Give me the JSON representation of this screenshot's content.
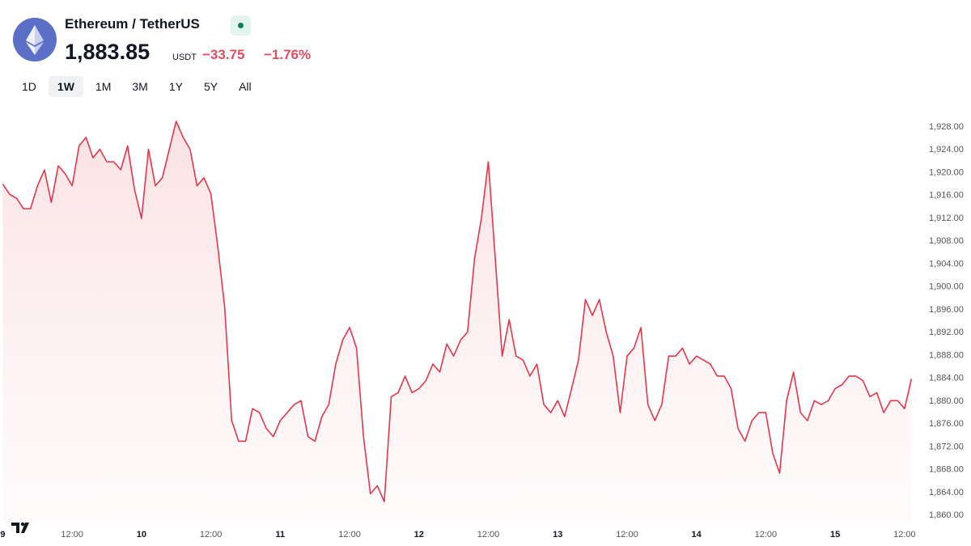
{
  "header": {
    "symbol": "Ethereum / TetherUS",
    "price": "1,883.85",
    "currency": "USDT",
    "change": "−33.75",
    "change_pct": "−1.76%",
    "ranges": [
      "1D",
      "1W",
      "1M",
      "3M",
      "1Y",
      "5Y",
      "All"
    ],
    "active_range": 1
  },
  "chart_data": {
    "type": "area",
    "color": "#e5364b",
    "x": [
      9,
      9.05,
      9.1,
      9.15,
      9.2,
      9.25,
      9.3,
      9.35,
      9.4,
      9.45,
      9.5,
      9.55,
      9.6,
      9.65,
      9.7,
      9.75,
      9.8,
      9.85,
      9.9,
      9.95,
      10,
      10.05,
      10.1,
      10.15,
      10.2,
      10.25,
      10.3,
      10.35,
      10.4,
      10.45,
      10.5,
      10.55,
      10.6,
      10.65,
      10.7,
      10.75,
      10.8,
      10.85,
      10.9,
      10.95,
      11,
      11.05,
      11.1,
      11.15,
      11.2,
      11.25,
      11.3,
      11.35,
      11.4,
      11.45,
      11.5,
      11.55,
      11.6,
      11.65,
      11.7,
      11.75,
      11.8,
      11.85,
      11.9,
      11.95,
      12,
      12.05,
      12.1,
      12.15,
      12.2,
      12.25,
      12.3,
      12.35,
      12.4,
      12.45,
      12.5,
      12.55,
      12.6,
      12.65,
      12.7,
      12.75,
      12.8,
      12.85,
      12.9,
      12.95,
      13,
      13.05,
      13.1,
      13.15,
      13.2,
      13.25,
      13.3,
      13.35,
      13.4,
      13.45,
      13.5,
      13.55,
      13.6,
      13.65,
      13.7,
      13.75,
      13.8,
      13.85,
      13.9,
      13.95,
      14,
      14.05,
      14.1,
      14.15,
      14.2,
      14.25,
      14.3,
      14.35,
      14.4,
      14.45,
      14.5,
      14.55,
      14.6,
      14.65,
      14.7,
      14.75,
      14.8,
      14.85,
      14.9,
      14.95,
      15,
      15.05,
      15.1,
      15.15,
      15.2,
      15.25,
      15.3,
      15.35,
      15.4,
      15.45,
      15.5,
      15.55
    ],
    "values": [
      1918,
      1916.2,
      1915.5,
      1913.7,
      1913.7,
      1917.7,
      1920.5,
      1914.8,
      1921.2,
      1919.8,
      1917.7,
      1924.7,
      1926.2,
      1922.6,
      1924.1,
      1921.9,
      1921.9,
      1920.5,
      1924.7,
      1917,
      1912,
      1924.1,
      1917.7,
      1919.1,
      1924.1,
      1929,
      1926.2,
      1924.1,
      1917.7,
      1919.1,
      1916.3,
      1907,
      1896.4,
      1876.6,
      1873,
      1873,
      1878.7,
      1878,
      1875.2,
      1873.8,
      1876.6,
      1878,
      1879.4,
      1880.1,
      1873.8,
      1873,
      1877.3,
      1879.4,
      1886.5,
      1890.7,
      1892.9,
      1889.3,
      1873.8,
      1863.8,
      1865.2,
      1862.4,
      1880.8,
      1881.5,
      1884.4,
      1881.5,
      1882.2,
      1883.6,
      1886.5,
      1885.1,
      1890,
      1887.9,
      1890.7,
      1892.1,
      1904.9,
      1912,
      1921.9,
      1904.9,
      1887.9,
      1894.3,
      1887.9,
      1887.2,
      1884.4,
      1886.5,
      1879.4,
      1878,
      1880.1,
      1877.3,
      1882.2,
      1887.2,
      1897.8,
      1895,
      1897.8,
      1892.1,
      1887.9,
      1878,
      1887.9,
      1889.3,
      1892.9,
      1879.4,
      1876.6,
      1879.4,
      1887.9,
      1887.9,
      1889.3,
      1886.5,
      1887.9,
      1887.2,
      1886.5,
      1884.4,
      1884.4,
      1882.2,
      1875.2,
      1873,
      1876.6,
      1878,
      1878,
      1870.9,
      1867.4,
      1880.1,
      1885.1,
      1878,
      1876.6,
      1880.1,
      1879.4,
      1880.1,
      1882.2,
      1882.9,
      1884.4,
      1884.4,
      1883.6,
      1880.8,
      1881.5,
      1878,
      1880.1,
      1880.1,
      1878.7,
      1883.9
    ],
    "xlim": [
      8.98,
      15.6
    ],
    "xticks": [
      9,
      {
        "value": 9.5,
        "label": "12:00"
      },
      10,
      {
        "value": 10.5,
        "label": "12:00"
      },
      11,
      {
        "value": 11.5,
        "label": "12:00"
      },
      12,
      {
        "value": 12.5,
        "label": "12:00"
      },
      13,
      {
        "value": 13.5,
        "label": "12:00"
      },
      14,
      {
        "value": 14.5,
        "label": "12:00"
      },
      15,
      {
        "value": 15.5,
        "label": "12:00"
      }
    ],
    "ylim": [
      1858.9,
      1930.4
    ],
    "yticks": [
      {
        "value": 1860,
        "label": "1,860.00"
      },
      {
        "value": 1864,
        "label": "1,864.00"
      },
      {
        "value": 1868,
        "label": "1,868.00"
      },
      {
        "value": 1872,
        "label": "1,872.00"
      },
      {
        "value": 1876,
        "label": "1,876.00"
      },
      {
        "value": 1880,
        "label": "1,880.00"
      },
      {
        "value": 1884,
        "label": "1,884.00"
      },
      {
        "value": 1888,
        "label": "1,888.00"
      },
      {
        "value": 1892,
        "label": "1,892.00"
      },
      {
        "value": 1896,
        "label": "1,896.00"
      },
      {
        "value": 1900,
        "label": "1,900.00"
      },
      {
        "value": 1904,
        "label": "1,904.00"
      },
      {
        "value": 1908,
        "label": "1,908.00"
      },
      {
        "value": 1912,
        "label": "1,912.00"
      },
      {
        "value": 1916,
        "label": "1,916.00"
      },
      {
        "value": 1920,
        "label": "1,920.00"
      },
      {
        "value": 1924,
        "label": "1,924.00"
      },
      {
        "value": 1928,
        "label": "1,928.00"
      }
    ]
  }
}
